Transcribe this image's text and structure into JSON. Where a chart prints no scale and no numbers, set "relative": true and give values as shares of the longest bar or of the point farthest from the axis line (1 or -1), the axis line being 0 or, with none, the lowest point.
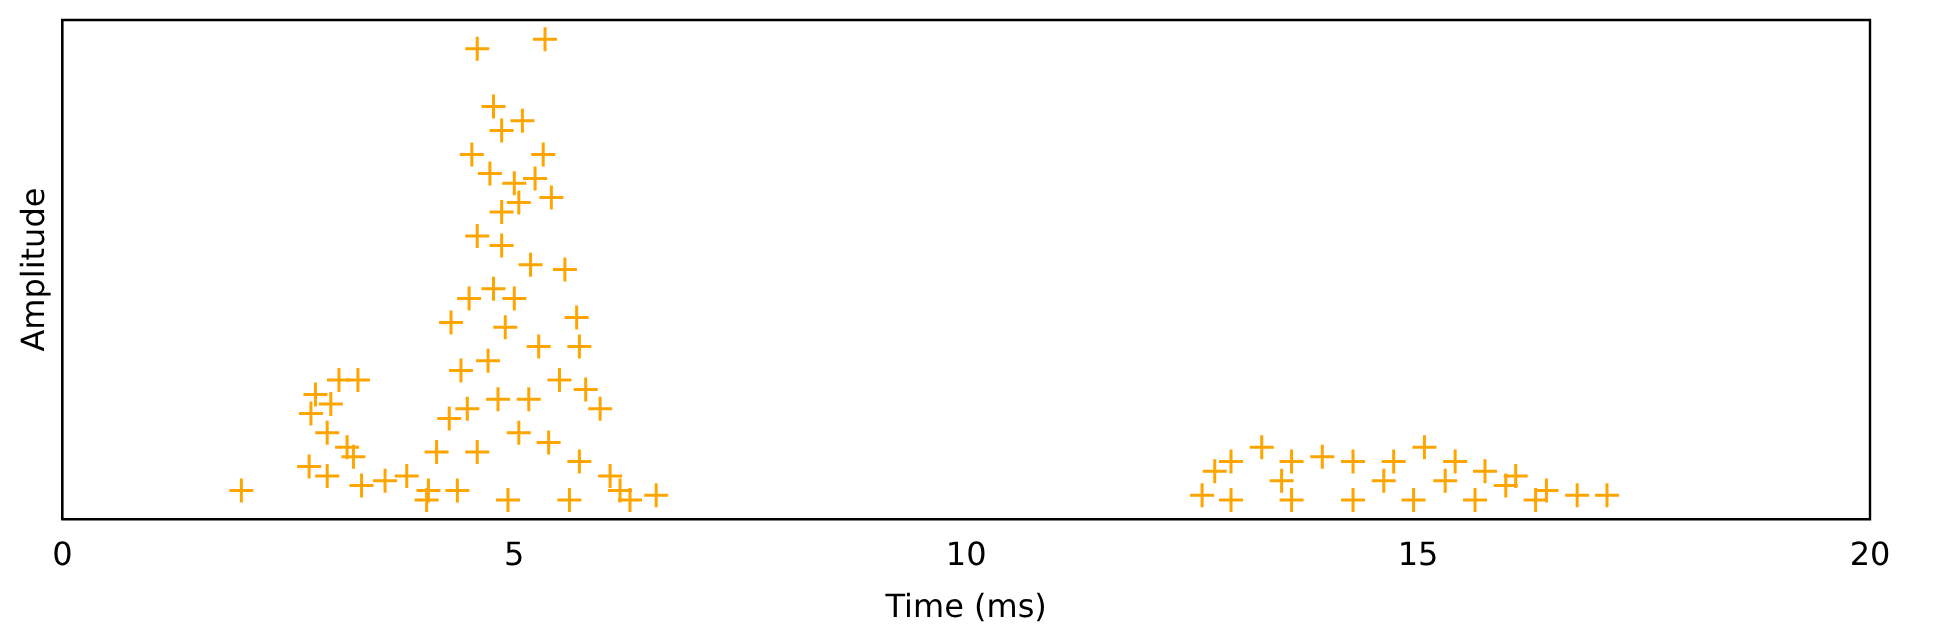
{
  "chart_data": {
    "type": "scatter",
    "xlabel": "Time (ms)",
    "ylabel": "Amplitude",
    "relative": true,
    "xlim": [
      0,
      20
    ],
    "xticks": [
      0,
      5,
      10,
      15,
      20
    ],
    "grid": false,
    "legend": false,
    "marker": "cross",
    "series": [
      {
        "color": "#ffa500",
        "x": [
          1.98,
          2.73,
          2.75,
          2.8,
          3.06,
          3.27,
          2.97,
          2.93,
          3.15,
          3.22,
          2.93,
          3.31,
          3.57,
          3.81,
          4.05,
          4.59,
          5.34,
          4.77,
          4.86,
          5.09,
          4.53,
          5.32,
          5.23,
          5.41,
          4.73,
          4.86,
          5.05,
          4.59,
          4.5,
          4.3,
          5.56,
          5.69,
          5.72,
          5.79,
          5.95,
          4.41,
          4.28,
          4.14,
          4.77,
          5.0,
          5.18,
          4.9,
          4.71,
          5.27,
          5.5,
          4.82,
          5.05,
          4.59,
          5.38,
          5.72,
          6.06,
          6.17,
          6.57,
          4.37,
          4.03,
          4.93,
          5.61,
          6.28,
          4.48,
          5.16,
          4.86,
          5.0,
          12.61,
          12.75,
          12.93,
          13.27,
          13.6,
          13.94,
          14.28,
          14.73,
          15.07,
          15.41,
          15.74,
          16.08,
          16.42,
          16.76,
          17.09,
          12.93,
          13.6,
          14.28,
          14.95,
          15.63,
          16.3,
          13.49,
          14.62,
          15.3,
          15.97
        ],
        "values": [
          0.06,
          0.11,
          0.22,
          0.26,
          0.29,
          0.29,
          0.24,
          0.18,
          0.15,
          0.13,
          0.09,
          0.07,
          0.08,
          0.09,
          0.06,
          0.98,
          1.0,
          0.86,
          0.81,
          0.83,
          0.76,
          0.76,
          0.71,
          0.67,
          0.72,
          0.64,
          0.66,
          0.59,
          0.46,
          0.41,
          0.52,
          0.42,
          0.36,
          0.27,
          0.23,
          0.31,
          0.21,
          0.14,
          0.48,
          0.46,
          0.53,
          0.4,
          0.33,
          0.36,
          0.29,
          0.25,
          0.18,
          0.14,
          0.16,
          0.12,
          0.09,
          0.06,
          0.05,
          0.06,
          0.04,
          0.04,
          0.04,
          0.04,
          0.23,
          0.25,
          0.57,
          0.7,
          0.05,
          0.1,
          0.12,
          0.15,
          0.12,
          0.13,
          0.12,
          0.12,
          0.15,
          0.12,
          0.1,
          0.09,
          0.06,
          0.05,
          0.05,
          0.04,
          0.04,
          0.04,
          0.04,
          0.04,
          0.04,
          0.08,
          0.08,
          0.08,
          0.07
        ]
      }
    ]
  }
}
